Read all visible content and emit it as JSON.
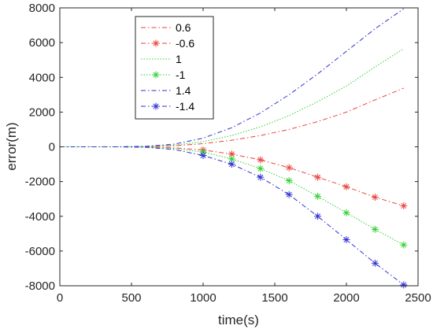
{
  "chart_data": {
    "type": "line",
    "title": "",
    "xlabel": "time(s)",
    "ylabel": "error(m)",
    "xlim": [
      0,
      2500
    ],
    "ylim": [
      -8000,
      8000
    ],
    "xticks": [
      0,
      500,
      1000,
      1500,
      2000,
      2500
    ],
    "xtick_labels": [
      "0",
      "500",
      "1000",
      "1500",
      "2000",
      "2500"
    ],
    "yticks": [
      -8000,
      -6000,
      -4000,
      -2000,
      0,
      2000,
      4000,
      6000,
      8000
    ],
    "ytick_labels": [
      "-8000",
      "-6000",
      "-4000",
      "-2000",
      "0",
      "2000",
      "4000",
      "6000",
      "8000"
    ],
    "grid": false,
    "legend_position": "top-left",
    "x": [
      0,
      200,
      400,
      600,
      800,
      1000,
      1200,
      1400,
      1600,
      1800,
      2000,
      2200,
      2400
    ],
    "series": [
      {
        "name": "0.6",
        "color": "#e8423c",
        "line_style": "dash-dot",
        "marker": "none",
        "values": [
          0,
          0,
          0,
          10,
          60,
          180,
          380,
          650,
          1000,
          1450,
          2000,
          2700,
          3380
        ]
      },
      {
        "name": "-0.6",
        "color": "#e8423c",
        "line_style": "dash-dot",
        "marker": "asterisk",
        "values": [
          0,
          0,
          0,
          -10,
          -60,
          -180,
          -420,
          -750,
          -1200,
          -1750,
          -2300,
          -2900,
          -3400
        ]
      },
      {
        "name": "1",
        "color": "#32d232",
        "line_style": "dotted",
        "marker": "none",
        "values": [
          0,
          0,
          0,
          15,
          100,
          300,
          650,
          1150,
          1800,
          2600,
          3500,
          4600,
          5650
        ]
      },
      {
        "name": "-1",
        "color": "#32d232",
        "line_style": "dotted",
        "marker": "asterisk",
        "values": [
          0,
          0,
          0,
          -15,
          -100,
          -300,
          -700,
          -1250,
          -1950,
          -2850,
          -3800,
          -4750,
          -5650
        ]
      },
      {
        "name": "1.4",
        "color": "#3232d2",
        "line_style": "dash-dot",
        "marker": "none",
        "values": [
          0,
          0,
          0,
          25,
          160,
          500,
          1100,
          1950,
          3000,
          4200,
          5500,
          6800,
          7950
        ]
      },
      {
        "name": "-1.4",
        "color": "#3232d2",
        "line_style": "dash-dot",
        "marker": "asterisk",
        "values": [
          0,
          0,
          0,
          -25,
          -160,
          -500,
          -1000,
          -1750,
          -2750,
          -4000,
          -5350,
          -6700,
          -7950
        ]
      }
    ]
  }
}
